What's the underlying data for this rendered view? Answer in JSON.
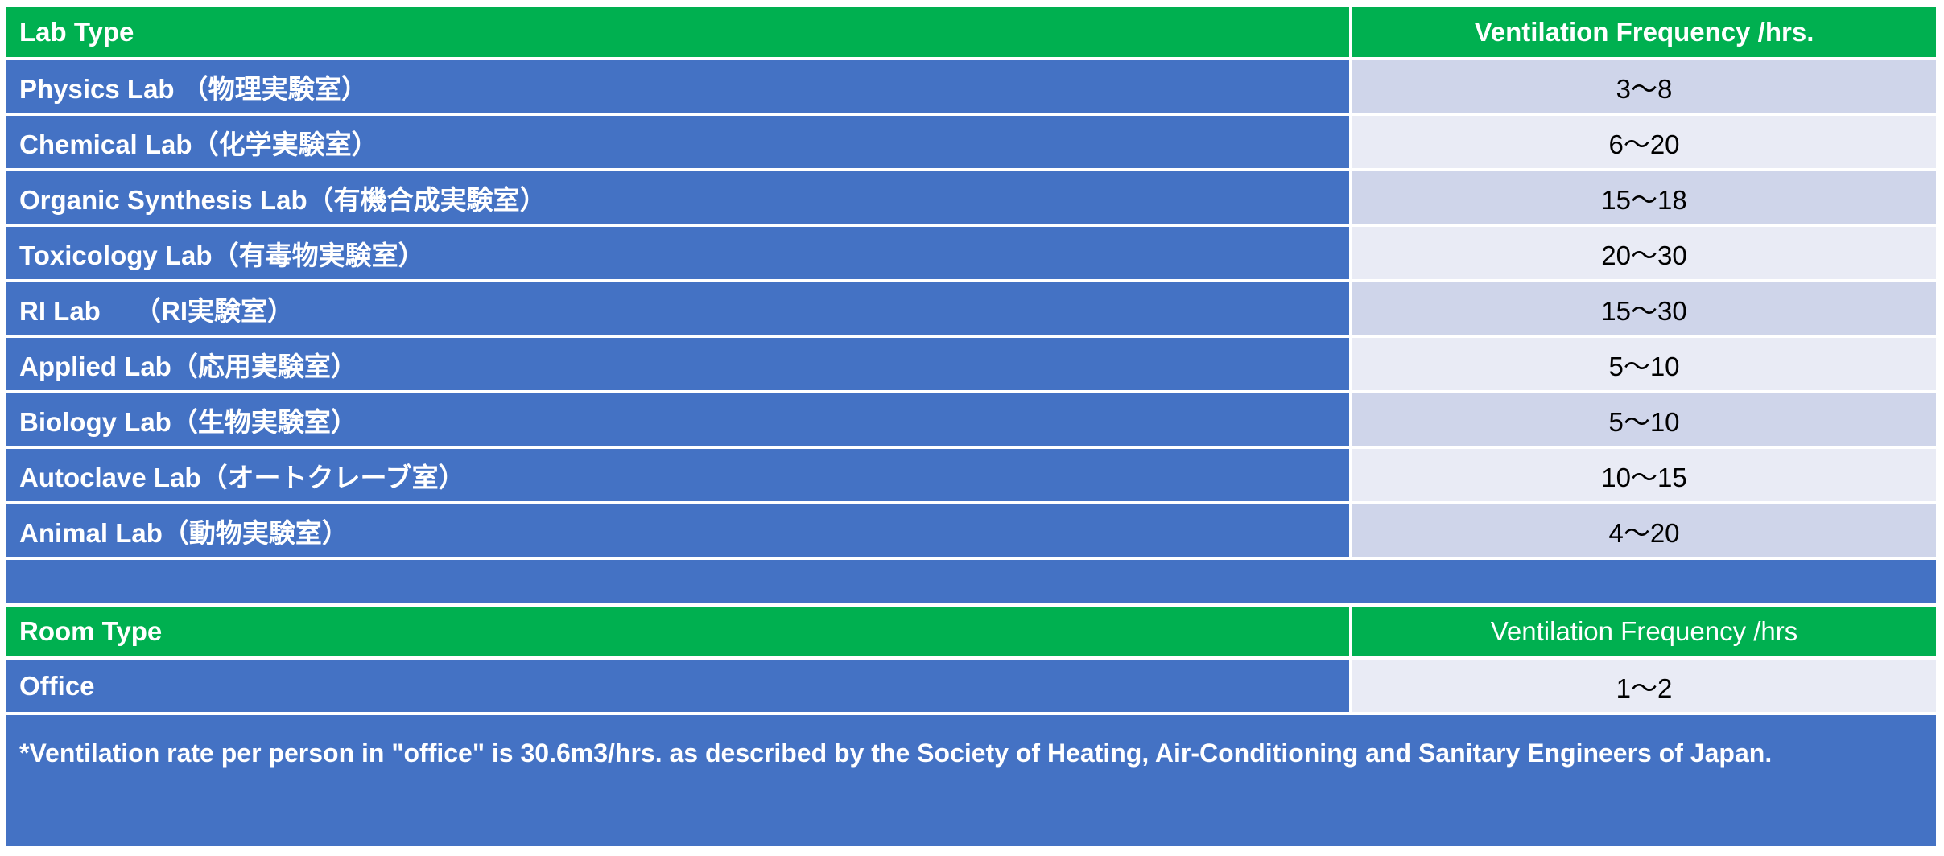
{
  "colors": {
    "header": "#00B050",
    "row_left": "#4472C4",
    "row_right_dark": "#CFD5EA",
    "row_right_light": "#E9EBF5"
  },
  "lab_table": {
    "headers": [
      "Lab Type",
      "Ventilation Frequency /hrs."
    ],
    "rows": [
      [
        "Physics Lab （物理実験室）",
        "3～8"
      ],
      [
        "Chemical Lab（化学実験室）",
        "6～20"
      ],
      [
        "Organic Synthesis Lab（有機合成実験室）",
        "15～18"
      ],
      [
        "Toxicology Lab（有毒物実験室）",
        "20～30"
      ],
      [
        "RI Lab　 （RI実験室）",
        "15～30"
      ],
      [
        "Applied Lab（応用実験室）",
        "5～10"
      ],
      [
        "Biology Lab（生物実験室）",
        "5～10"
      ],
      [
        "Autoclave Lab（オートクレーブ室）",
        "10～15"
      ],
      [
        "Animal Lab（動物実験室）",
        "4～20"
      ]
    ]
  },
  "room_table": {
    "headers": [
      "Room Type",
      "Ventilation Frequency /hrs"
    ],
    "rows": [
      [
        "Office",
        "1～2"
      ]
    ]
  },
  "note": "*Ventilation rate per person in \"office\" is 30.6m3/hrs. as described by the Society of Heating, Air-Conditioning and Sanitary Engineers of Japan."
}
